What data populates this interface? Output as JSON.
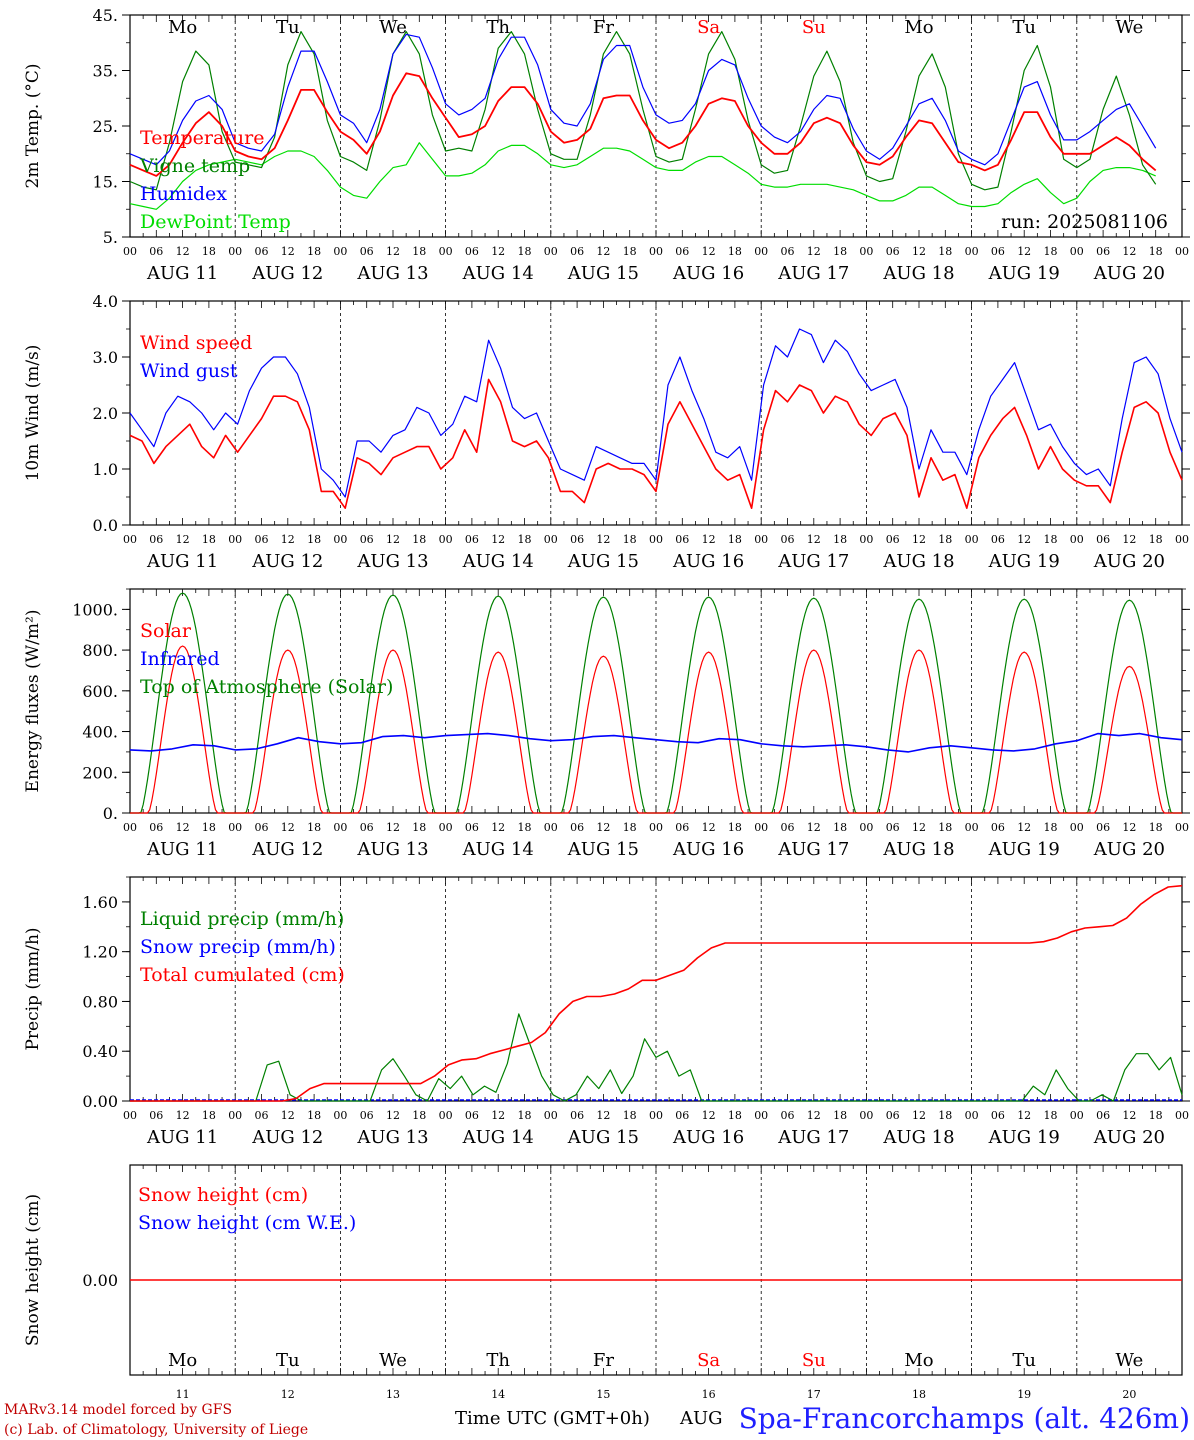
{
  "colors": {
    "red": "#ff0000",
    "green": "#008000",
    "blue": "#0000ff",
    "lime": "#00dd00",
    "weekend": "#ff0000",
    "footer": "#cc0000",
    "station": "#2020ff"
  },
  "days": [
    "Mo",
    "Tu",
    "We",
    "Th",
    "Fr",
    "Sa",
    "Su",
    "Mo",
    "Tu",
    "We"
  ],
  "weekend_days": [
    5,
    6
  ],
  "dates": [
    "AUG 11",
    "AUG 12",
    "AUG 13",
    "AUG 14",
    "AUG 15",
    "AUG 16",
    "AUG 17",
    "AUG 18",
    "AUG 19",
    "AUG 20"
  ],
  "day_numbers": [
    "11",
    "12",
    "13",
    "14",
    "15",
    "16",
    "17",
    "18",
    "19",
    "20"
  ],
  "hour_labels": [
    "00",
    "06",
    "12",
    "18"
  ],
  "run_label": "run: 2025081106",
  "xlabel": "Time UTC (GMT+0h)",
  "footer_model": "MARv3.14 model forced by GFS",
  "footer_lab": "(c) Lab. of Climatology, University of Liege",
  "station": "Spa-Francorchamps (alt. 426m)",
  "month_overlap": "AUG",
  "chart_data": [
    {
      "type": "line",
      "id": "temp",
      "ylabel": "2m Temp. (°C)",
      "ylim": [
        5,
        45
      ],
      "yticks": [
        "5.",
        "15.",
        "25.",
        "35.",
        "45."
      ],
      "ytick_values": [
        5,
        15,
        25,
        35,
        45
      ],
      "x": "hours since AUG 11 00 UTC, every 3 h",
      "series": [
        {
          "name": "Temperature",
          "color": "red",
          "values": [
            18,
            17,
            16,
            18,
            22,
            25.5,
            27.5,
            25,
            20.5,
            19.5,
            19,
            21,
            26,
            31.5,
            31.5,
            27.5,
            24,
            22.5,
            20,
            24,
            30.5,
            34.5,
            34,
            30,
            26.5,
            23,
            23.5,
            25,
            29.5,
            32,
            32,
            29,
            24,
            22,
            22.5,
            24.5,
            30,
            30.5,
            30.5,
            26,
            22.5,
            21,
            22,
            25,
            29,
            30,
            29.5,
            25,
            22,
            20,
            20,
            22,
            25.5,
            26.5,
            25.5,
            21.5,
            18.5,
            18,
            19.5,
            23,
            26,
            25.5,
            22,
            18.5,
            18,
            17,
            18,
            22.5,
            27.5,
            27.5,
            23,
            20,
            20,
            20,
            21.5,
            23,
            21.5,
            19,
            17
          ]
        },
        {
          "name": "Vigne temp",
          "color": "green",
          "values": [
            15,
            14,
            13.5,
            22,
            33,
            38.5,
            36,
            24,
            18.5,
            18,
            17.5,
            23,
            36,
            42,
            38,
            26,
            19.5,
            18.5,
            17,
            26,
            38,
            42,
            38,
            27,
            20.5,
            21,
            20.5,
            28,
            39,
            42,
            38,
            28,
            20,
            19,
            19,
            27,
            38,
            42,
            38,
            28,
            19.5,
            18.5,
            19,
            28,
            38,
            42,
            37,
            26,
            18,
            16.5,
            17,
            25,
            34,
            38.5,
            33,
            22,
            16,
            15,
            15.5,
            24,
            34,
            38,
            32,
            20,
            14.5,
            13.5,
            14,
            24,
            35,
            39.5,
            32,
            19,
            17.5,
            19,
            28,
            34,
            27,
            18,
            14.5
          ]
        },
        {
          "name": "Humidex",
          "color": "blue",
          "values": [
            20,
            19,
            18,
            20.5,
            26,
            29.5,
            30.5,
            28,
            22,
            21,
            20.5,
            23.5,
            32,
            38.5,
            38.5,
            33,
            27,
            25.5,
            22,
            28,
            38,
            41.5,
            41,
            35.5,
            29,
            27,
            28,
            30,
            37,
            41,
            41,
            36,
            28,
            25.5,
            25,
            29,
            37,
            39.5,
            39.5,
            32,
            27,
            25.5,
            26,
            29,
            35,
            37,
            36,
            30,
            25,
            23,
            22,
            24,
            28,
            30.5,
            30,
            24.5,
            20.5,
            19,
            21,
            25,
            29,
            30,
            26,
            20.5,
            19,
            18,
            20,
            26,
            32,
            33,
            27,
            22.5,
            22.5,
            24,
            26,
            28,
            29,
            25,
            21
          ]
        },
        {
          "name": "DewPoint Temp",
          "color": "lime",
          "values": [
            11,
            10.5,
            10,
            12,
            15,
            17,
            18,
            18.5,
            19,
            18.5,
            18,
            19.5,
            20.5,
            20.5,
            19.5,
            17,
            14,
            12.5,
            12,
            15,
            17.5,
            18,
            22,
            19,
            16,
            16,
            16.5,
            18,
            20.5,
            21.5,
            21.5,
            20,
            18,
            17.5,
            18,
            19.5,
            21,
            21,
            20.5,
            19,
            17.5,
            17,
            17,
            18.5,
            19.5,
            19.5,
            18,
            16.5,
            14.5,
            14,
            14,
            14.5,
            14.5,
            14.5,
            14,
            13.5,
            12.5,
            11.5,
            11.5,
            12.5,
            14,
            14,
            12.5,
            11,
            10.5,
            10.5,
            11,
            13,
            14.5,
            15.5,
            13,
            11,
            12,
            15,
            17,
            17.5,
            17.5,
            17,
            16
          ]
        }
      ]
    },
    {
      "type": "line",
      "id": "wind",
      "ylabel": "10m Wind (m/s)",
      "ylim": [
        0,
        4
      ],
      "yticks": [
        "0.0",
        "1.0",
        "2.0",
        "3.0",
        "4.0"
      ],
      "ytick_values": [
        0,
        1,
        2,
        3,
        4
      ],
      "x": "hours since AUG 11 00 UTC, every 3 h",
      "series": [
        {
          "name": "Wind speed",
          "color": "red",
          "values": [
            1.6,
            1.5,
            1.1,
            1.4,
            1.6,
            1.8,
            1.4,
            1.2,
            1.6,
            1.3,
            1.6,
            1.9,
            2.3,
            2.3,
            2.2,
            1.7,
            0.6,
            0.6,
            0.3,
            1.2,
            1.1,
            0.9,
            1.2,
            1.3,
            1.4,
            1.4,
            1.0,
            1.2,
            1.7,
            1.3,
            2.6,
            2.2,
            1.5,
            1.4,
            1.5,
            1.2,
            0.6,
            0.6,
            0.4,
            1.0,
            1.1,
            1.0,
            1.0,
            0.9,
            0.6,
            1.8,
            2.2,
            1.8,
            1.4,
            1.0,
            0.8,
            0.9,
            0.3,
            1.7,
            2.4,
            2.2,
            2.5,
            2.4,
            2.0,
            2.3,
            2.2,
            1.8,
            1.6,
            1.9,
            2.0,
            1.6,
            0.5,
            1.2,
            0.8,
            0.9,
            0.3,
            1.2,
            1.6,
            1.9,
            2.1,
            1.6,
            1.0,
            1.4,
            1.0,
            0.8,
            0.7,
            0.7,
            0.4,
            1.3,
            2.1,
            2.2,
            2.0,
            1.3,
            0.8
          ]
        },
        {
          "name": "Wind gust",
          "color": "blue",
          "values": [
            2.0,
            1.7,
            1.4,
            2.0,
            2.3,
            2.2,
            2.0,
            1.7,
            2.0,
            1.8,
            2.4,
            2.8,
            3.0,
            3.0,
            2.7,
            2.1,
            1.0,
            0.8,
            0.5,
            1.5,
            1.5,
            1.3,
            1.6,
            1.7,
            2.1,
            2.0,
            1.6,
            1.8,
            2.3,
            2.2,
            3.3,
            2.8,
            2.1,
            1.9,
            2.0,
            1.5,
            1.0,
            0.9,
            0.8,
            1.4,
            1.3,
            1.2,
            1.1,
            1.1,
            0.8,
            2.5,
            3.0,
            2.4,
            1.9,
            1.3,
            1.2,
            1.4,
            0.8,
            2.5,
            3.2,
            3.0,
            3.5,
            3.4,
            2.9,
            3.3,
            3.1,
            2.7,
            2.4,
            2.5,
            2.6,
            2.1,
            1.0,
            1.7,
            1.3,
            1.3,
            0.9,
            1.7,
            2.3,
            2.6,
            2.9,
            2.3,
            1.7,
            1.8,
            1.4,
            1.1,
            0.9,
            1.0,
            0.7,
            1.9,
            2.9,
            3.0,
            2.7,
            1.9,
            1.3
          ]
        }
      ]
    },
    {
      "type": "line",
      "id": "energy",
      "ylabel": "Energy fluxes (W/m²)",
      "ylim": [
        0,
        1100
      ],
      "yticks": [
        "0.",
        "200.",
        "400.",
        "600.",
        "800.",
        "1000."
      ],
      "ytick_values": [
        0,
        200,
        400,
        600,
        800,
        1000
      ],
      "peaks_solar": [
        820,
        800,
        800,
        790,
        770,
        790,
        800,
        800,
        790,
        720
      ],
      "peaks_toa": [
        1080,
        1075,
        1070,
        1065,
        1060,
        1060,
        1055,
        1050,
        1050,
        1045
      ],
      "series": [
        {
          "name": "Solar",
          "color": "red"
        },
        {
          "name": "Infrared",
          "color": "blue",
          "values": [
            310,
            305,
            315,
            335,
            330,
            310,
            315,
            340,
            370,
            350,
            340,
            345,
            375,
            380,
            370,
            380,
            385,
            390,
            380,
            365,
            355,
            360,
            375,
            380,
            370,
            360,
            350,
            345,
            365,
            360,
            340,
            330,
            325,
            330,
            335,
            325,
            310,
            300,
            320,
            330,
            320,
            310,
            305,
            315,
            340,
            355,
            390,
            380,
            390,
            370,
            360
          ]
        },
        {
          "name": "Top of Atmosphere (Solar)",
          "color": "green"
        }
      ]
    },
    {
      "type": "line",
      "id": "precip",
      "ylabel": "Precip (mm/h)",
      "ylim": [
        0,
        1.8
      ],
      "yticks": [
        "0.00",
        "0.40",
        "0.80",
        "1.20",
        "1.60"
      ],
      "ytick_values": [
        0,
        0.4,
        0.8,
        1.2,
        1.6
      ],
      "series": [
        {
          "name": "Liquid precip (mm/h)",
          "color": "green",
          "values": [
            0,
            0,
            0,
            0,
            0,
            0,
            0,
            0,
            0,
            0,
            0,
            0,
            0.29,
            0.32,
            0.05,
            0,
            0,
            0,
            0,
            0,
            0,
            0,
            0.25,
            0.34,
            0.2,
            0.05,
            0,
            0.18,
            0.1,
            0.2,
            0.05,
            0.12,
            0.07,
            0.3,
            0.7,
            0.45,
            0.2,
            0.05,
            0,
            0.05,
            0.2,
            0.1,
            0.25,
            0.06,
            0.2,
            0.5,
            0.35,
            0.4,
            0.2,
            0.25,
            0,
            0,
            0,
            0,
            0,
            0,
            0,
            0,
            0,
            0,
            0,
            0,
            0,
            0,
            0,
            0,
            0,
            0,
            0,
            0,
            0,
            0,
            0,
            0,
            0,
            0,
            0,
            0,
            0,
            0.12,
            0.05,
            0.25,
            0.1,
            0,
            0,
            0.05,
            0,
            0.25,
            0.38,
            0.38,
            0.25,
            0.35,
            0.05
          ]
        },
        {
          "name": "Snow precip (mm/h)",
          "color": "blue"
        },
        {
          "name": "Total cumulated (cm)",
          "color": "red",
          "values": [
            0,
            0,
            0,
            0,
            0,
            0,
            0,
            0,
            0,
            0,
            0,
            0,
            0.02,
            0.1,
            0.14,
            0.14,
            0.14,
            0.14,
            0.14,
            0.14,
            0.14,
            0.14,
            0.2,
            0.29,
            0.33,
            0.34,
            0.38,
            0.41,
            0.44,
            0.47,
            0.55,
            0.7,
            0.8,
            0.84,
            0.84,
            0.86,
            0.9,
            0.97,
            0.97,
            1.01,
            1.05,
            1.15,
            1.23,
            1.27,
            1.27,
            1.27,
            1.27,
            1.27,
            1.27,
            1.27,
            1.27,
            1.27,
            1.27,
            1.27,
            1.27,
            1.27,
            1.27,
            1.27,
            1.27,
            1.27,
            1.27,
            1.27,
            1.27,
            1.27,
            1.27,
            1.27,
            1.28,
            1.31,
            1.36,
            1.39,
            1.4,
            1.41,
            1.47,
            1.58,
            1.66,
            1.72,
            1.73
          ]
        }
      ]
    },
    {
      "type": "line",
      "id": "snow",
      "ylabel": "Snow height (cm)",
      "yticks": [
        "0.00"
      ],
      "series": [
        {
          "name": "Snow height (cm)",
          "color": "red"
        },
        {
          "name": "Snow height (cm W.E.)",
          "color": "blue"
        }
      ]
    }
  ]
}
